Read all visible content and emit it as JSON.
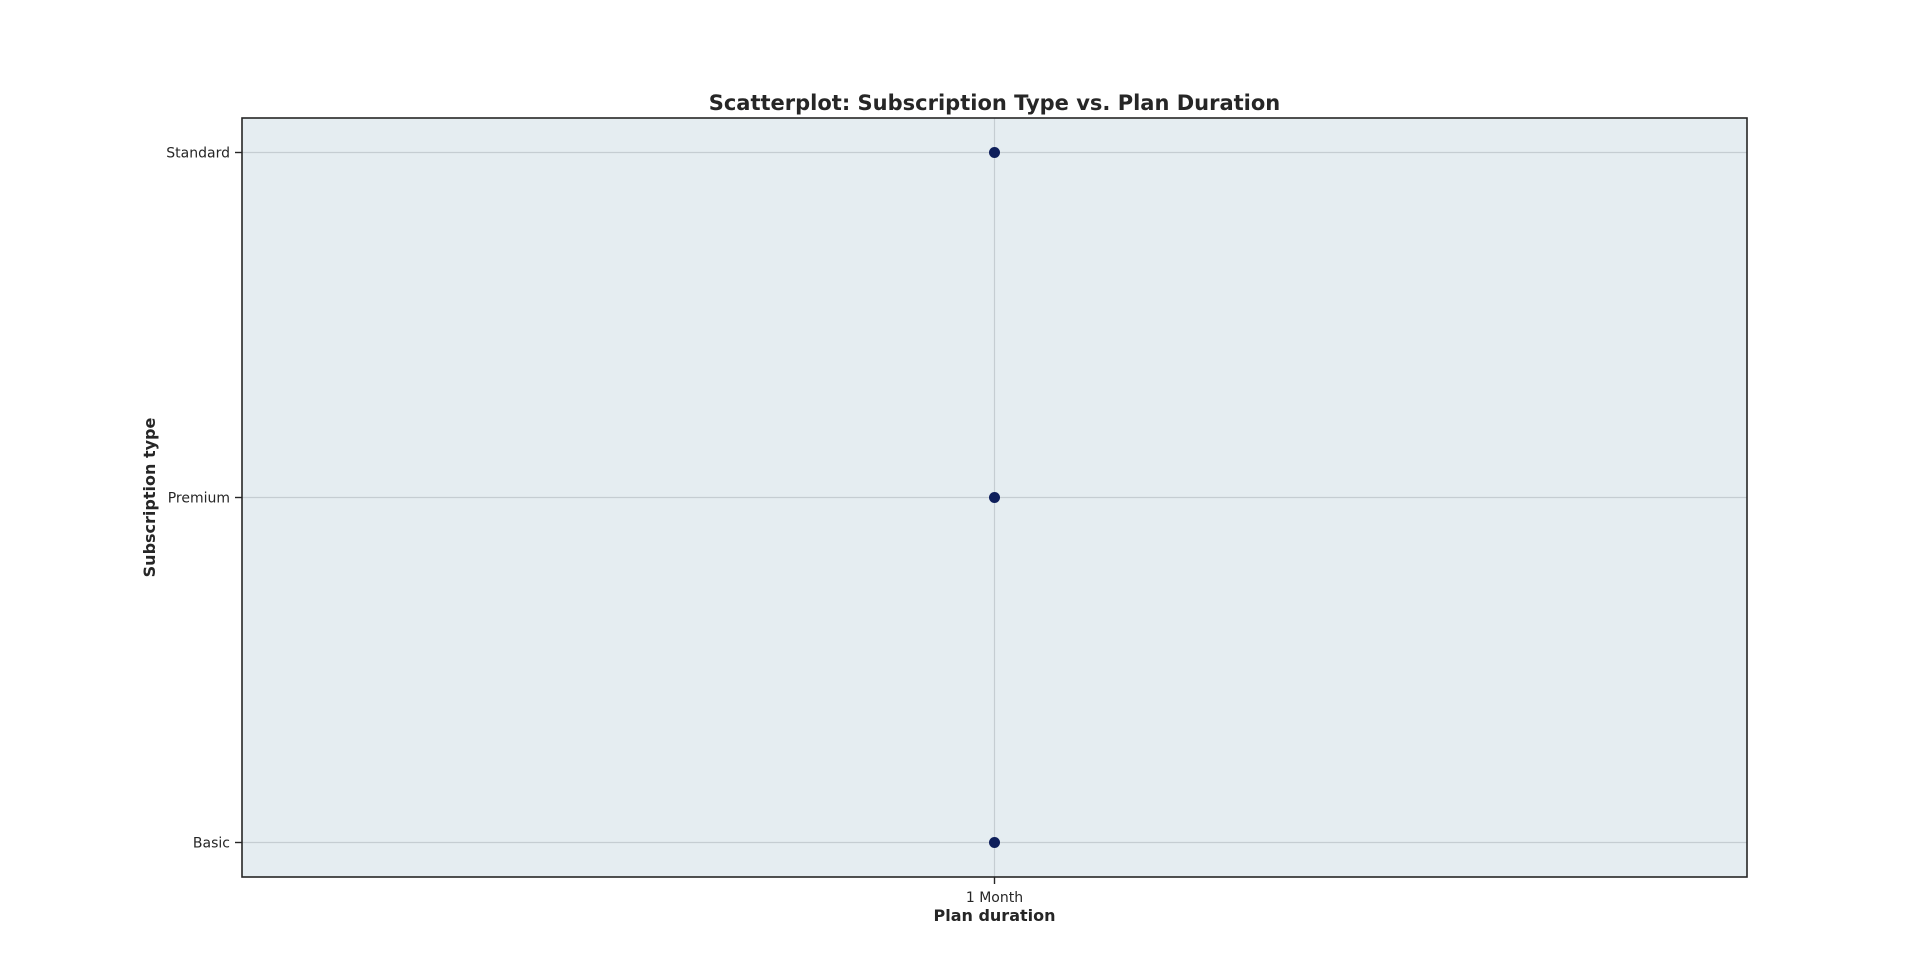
{
  "chart_data": {
    "type": "scatter",
    "title": "Scatterplot: Subscription Type vs. Plan Duration",
    "xlabel": "Plan duration",
    "ylabel": "Subscription type",
    "x_categories": [
      "1 Month"
    ],
    "y_categories": [
      "Basic",
      "Premium",
      "Standard"
    ],
    "points": [
      {
        "x": "1 Month",
        "y": "Standard"
      },
      {
        "x": "1 Month",
        "y": "Premium"
      },
      {
        "x": "1 Month",
        "y": "Basic"
      }
    ],
    "grid": true,
    "colors": {
      "background": "#ffffff",
      "plot_background": "#e5edf1",
      "grid": "#c5cdd2",
      "marker": "#0e1f5b",
      "axis": "#262626"
    }
  }
}
